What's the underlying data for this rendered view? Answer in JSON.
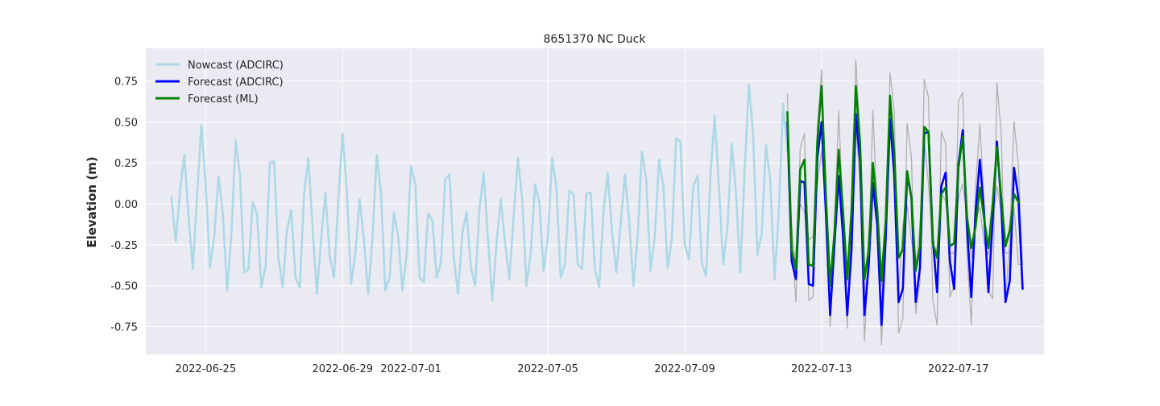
{
  "chart_data": {
    "type": "line",
    "title": "8651370 NC Duck",
    "xlabel": "",
    "ylabel": "Elevation (m)",
    "x_axis_type": "date",
    "xlim": [
      "2022-06-23T06:00",
      "2022-07-19T12:00"
    ],
    "ylim": [
      -0.92,
      0.95
    ],
    "x_ticks": [
      "2022-06-25",
      "2022-06-29",
      "2022-07-01",
      "2022-07-05",
      "2022-07-09",
      "2022-07-13",
      "2022-07-17"
    ],
    "y_ticks": [
      -0.75,
      -0.5,
      -0.25,
      0.0,
      0.25,
      0.5,
      0.75
    ],
    "grid": true,
    "legend_position": "top-left",
    "legend": [
      "Nowcast (ADCIRC)",
      "Forecast (ADCIRC)",
      "Forecast (ML)"
    ],
    "series": [
      {
        "name": "Nowcast (ADCIRC)",
        "color": "#add8e6",
        "x_start": "2022-06-24T00:00",
        "step_hours": 3,
        "values": [
          0.04,
          -0.23,
          0.08,
          0.3,
          -0.08,
          -0.4,
          0.06,
          0.48,
          0.12,
          -0.39,
          -0.2,
          0.17,
          -0.06,
          -0.53,
          -0.19,
          0.39,
          0.18,
          -0.42,
          -0.4,
          0.01,
          -0.06,
          -0.51,
          -0.38,
          0.25,
          0.26,
          -0.33,
          -0.51,
          -0.16,
          -0.04,
          -0.45,
          -0.51,
          0.06,
          0.28,
          -0.15,
          -0.55,
          -0.21,
          0.07,
          -0.32,
          -0.45,
          0.02,
          0.43,
          0.08,
          -0.49,
          -0.3,
          0.03,
          -0.22,
          -0.55,
          -0.21,
          0.3,
          0.06,
          -0.53,
          -0.45,
          -0.05,
          -0.2,
          -0.53,
          -0.3,
          0.23,
          0.12,
          -0.45,
          -0.48,
          -0.06,
          -0.1,
          -0.45,
          -0.36,
          0.15,
          0.18,
          -0.33,
          -0.55,
          -0.18,
          -0.05,
          -0.39,
          -0.5,
          -0.03,
          0.19,
          -0.21,
          -0.59,
          -0.24,
          0.03,
          -0.24,
          -0.46,
          -0.08,
          0.28,
          0.03,
          -0.5,
          -0.3,
          0.12,
          0.01,
          -0.41,
          -0.2,
          0.28,
          0.1,
          -0.45,
          -0.37,
          0.08,
          0.06,
          -0.37,
          -0.4,
          0.06,
          0.07,
          -0.4,
          -0.51,
          -0.05,
          0.19,
          -0.17,
          -0.42,
          -0.13,
          0.18,
          -0.1,
          -0.5,
          -0.2,
          0.32,
          0.15,
          -0.41,
          -0.2,
          0.27,
          0.11,
          -0.39,
          -0.21,
          0.4,
          0.38,
          -0.25,
          -0.34,
          0.11,
          0.17,
          -0.36,
          -0.44,
          0.16,
          0.54,
          0.1,
          -0.37,
          -0.14,
          0.37,
          0.06,
          -0.42,
          0.2,
          0.73,
          0.42,
          -0.31,
          -0.18,
          0.36,
          0.14,
          -0.46,
          -0.04,
          0.61,
          0.32
        ]
      },
      {
        "name": "Forecast (ADCIRC)",
        "color": "#0000ff",
        "x_start": "2022-07-12T00:00",
        "step_hours": 3,
        "values": [
          0.5,
          -0.35,
          -0.46,
          0.14,
          0.13,
          -0.49,
          -0.5,
          0.28,
          0.5,
          -0.05,
          -0.68,
          -0.25,
          0.17,
          -0.19,
          -0.68,
          -0.28,
          0.55,
          0.26,
          -0.68,
          -0.38,
          0.13,
          -0.13,
          -0.74,
          -0.2,
          0.52,
          0.18,
          -0.6,
          -0.52,
          0.18,
          0.04,
          -0.6,
          -0.39,
          0.43,
          0.44,
          -0.21,
          -0.54,
          0.11,
          0.19,
          -0.35,
          -0.52,
          0.24,
          0.45,
          -0.14,
          -0.57,
          -0.05,
          0.27,
          -0.06,
          -0.54,
          -0.1,
          0.38,
          0.0,
          -0.6,
          -0.47,
          0.22,
          0.04,
          -0.52
        ]
      },
      {
        "name": "Forecast (ML)",
        "color": "#008000",
        "x_start": "2022-07-12T00:00",
        "step_hours": 3,
        "values": [
          0.56,
          -0.28,
          -0.4,
          0.21,
          0.27,
          -0.37,
          -0.38,
          0.38,
          0.72,
          0.05,
          -0.5,
          -0.18,
          0.33,
          -0.04,
          -0.46,
          -0.04,
          0.72,
          0.37,
          -0.46,
          -0.29,
          0.25,
          -0.03,
          -0.47,
          -0.1,
          0.66,
          0.31,
          -0.33,
          -0.28,
          0.2,
          0.04,
          -0.41,
          -0.26,
          0.47,
          0.44,
          -0.24,
          -0.33,
          0.06,
          0.1,
          -0.26,
          -0.24,
          0.22,
          0.41,
          -0.08,
          -0.27,
          -0.14,
          0.1,
          -0.09,
          -0.27,
          0.0,
          0.35,
          0.04,
          -0.26,
          -0.16,
          0.06,
          0.01
        ]
      },
      {
        "color": "#b0b0b0",
        "x_start": "2022-07-12T00:00",
        "step_hours": 3,
        "values": [
          0.67,
          -0.21,
          -0.6,
          0.34,
          0.43,
          -0.59,
          -0.57,
          0.46,
          0.82,
          0.0,
          -0.75,
          -0.16,
          0.57,
          -0.07,
          -0.76,
          -0.06,
          0.88,
          0.41,
          -0.84,
          -0.35,
          0.57,
          -0.04,
          -0.86,
          -0.31,
          0.8,
          0.56,
          -0.79,
          -0.7,
          0.49,
          0.29,
          -0.67,
          -0.48,
          0.76,
          0.65,
          -0.59,
          -0.74,
          0.44,
          0.37,
          -0.57,
          -0.5,
          0.63,
          0.68,
          -0.3,
          -0.74,
          0.1,
          0.49,
          0.0,
          -0.53,
          -0.58,
          0.74,
          0.43,
          -0.6,
          -0.2,
          0.5,
          0.24,
          -0.37
        ]
      },
      {
        "color": "#b0b0b0",
        "x_start": "2022-07-12T00:00",
        "step_hours": 3,
        "values": [
          0.5,
          -0.13,
          -0.42,
          -0.0,
          -0.05,
          -0.22,
          -0.2,
          0.12,
          0.32,
          -0.06,
          -0.5,
          -0.24,
          0.27,
          -0.02,
          -0.49,
          -0.15,
          0.48,
          0.12,
          -0.55,
          -0.2,
          0.1,
          -0.15,
          -0.5,
          -0.12,
          0.5,
          0.08,
          -0.55,
          -0.13,
          -0.01,
          -0.22,
          -0.4,
          -0.13,
          0.39,
          0.12,
          -0.27,
          -0.28,
          0.06,
          0.02,
          -0.3,
          -0.3,
          0.04,
          0.12,
          -0.08,
          -0.33,
          -0.1,
          -0.02,
          -0.24,
          -0.31,
          -0.12,
          0.11,
          -0.06,
          -0.3,
          -0.3,
          -0.02,
          -0.37,
          -0.37
        ]
      }
    ]
  }
}
